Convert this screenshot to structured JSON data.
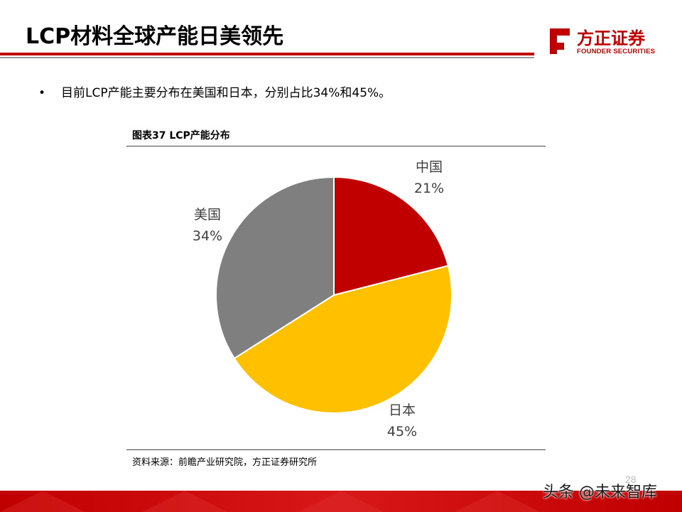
{
  "slide": {
    "title": "LCP材料全球产能日美领先",
    "bullet": "目前LCP产能主要分布在美国和日本，分别占比34%和45%。",
    "bullet_symbol": "•",
    "page_number": "28"
  },
  "logo": {
    "name_cn": "方正证券",
    "name_en": "FOUNDER SECURITIES",
    "color": "#c00000"
  },
  "figure": {
    "title": "图表37 LCP产能分布",
    "source": "资料来源：前瞻产业研究院，方正证券研究所"
  },
  "watermark": "头条 @未来智库",
  "chart_data": {
    "type": "pie",
    "title": "图表37 LCP产能分布",
    "slices": [
      {
        "label": "中国",
        "value": 21,
        "display": "21%",
        "color": "#c00000"
      },
      {
        "label": "日本",
        "value": 45,
        "display": "45%",
        "color": "#ffc000"
      },
      {
        "label": "美国",
        "value": 34,
        "display": "34%",
        "color": "#7f7f7f"
      }
    ],
    "start_angle": "12 o'clock",
    "direction": "clockwise",
    "legend": "none"
  }
}
